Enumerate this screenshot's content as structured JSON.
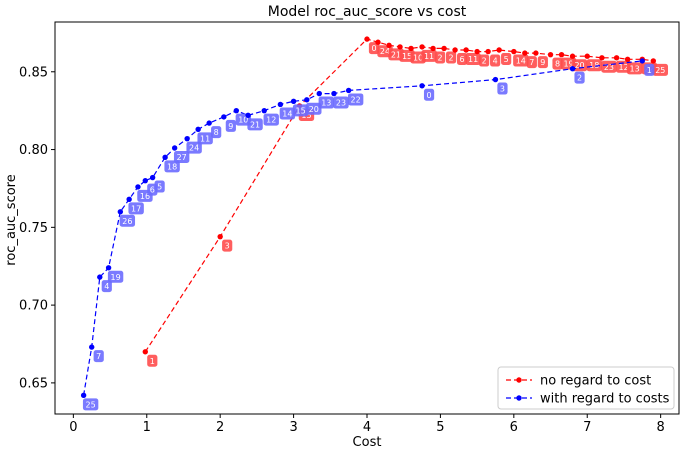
{
  "chart_data": {
    "type": "line",
    "title": "Model roc_auc_score vs cost",
    "xlabel": "Cost",
    "ylabel": "roc_auc_score",
    "xlim": [
      -0.25,
      8.25
    ],
    "ylim": [
      0.63,
      0.882
    ],
    "xticks": [
      "0",
      "1",
      "2",
      "3",
      "4",
      "5",
      "6",
      "7",
      "8"
    ],
    "yticks": [
      "0.65",
      "0.70",
      "0.75",
      "0.80",
      "0.85"
    ],
    "grid": false,
    "legend_position": "lower-right",
    "series": [
      {
        "name": "no regard to cost",
        "color": "#ff0000",
        "label_bg": "#ff4d4d",
        "linestyle": "dashed",
        "points": [
          {
            "x": 0.98,
            "y": 0.67,
            "label": "1"
          },
          {
            "x": 2.0,
            "y": 0.744,
            "label": "3"
          },
          {
            "x": 3.08,
            "y": 0.828,
            "label": "15"
          },
          {
            "x": 4.0,
            "y": 0.871,
            "label": "0"
          },
          {
            "x": 4.15,
            "y": 0.869,
            "label": "24"
          },
          {
            "x": 4.3,
            "y": 0.867,
            "label": "21"
          },
          {
            "x": 4.45,
            "y": 0.866,
            "label": "15"
          },
          {
            "x": 4.6,
            "y": 0.865,
            "label": "10"
          },
          {
            "x": 4.75,
            "y": 0.866,
            "label": "11"
          },
          {
            "x": 4.9,
            "y": 0.865,
            "label": "2"
          },
          {
            "x": 5.05,
            "y": 0.865,
            "label": "2"
          },
          {
            "x": 5.2,
            "y": 0.864,
            "label": "6"
          },
          {
            "x": 5.35,
            "y": 0.864,
            "label": "11"
          },
          {
            "x": 5.5,
            "y": 0.863,
            "label": "2"
          },
          {
            "x": 5.65,
            "y": 0.863,
            "label": "4"
          },
          {
            "x": 5.8,
            "y": 0.864,
            "label": "5"
          },
          {
            "x": 6.0,
            "y": 0.863,
            "label": "14"
          },
          {
            "x": 6.15,
            "y": 0.862,
            "label": "7"
          },
          {
            "x": 6.3,
            "y": 0.862,
            "label": "9"
          },
          {
            "x": 6.5,
            "y": 0.861,
            "label": "8"
          },
          {
            "x": 6.65,
            "y": 0.861,
            "label": "19"
          },
          {
            "x": 6.8,
            "y": 0.86,
            "label": "20"
          },
          {
            "x": 7.0,
            "y": 0.86,
            "label": "18"
          },
          {
            "x": 7.2,
            "y": 0.859,
            "label": "23"
          },
          {
            "x": 7.4,
            "y": 0.859,
            "label": "12"
          },
          {
            "x": 7.55,
            "y": 0.858,
            "label": "13"
          },
          {
            "x": 7.75,
            "y": 0.858,
            "label": "22"
          },
          {
            "x": 7.9,
            "y": 0.857,
            "label": "25"
          }
        ]
      },
      {
        "name": "with regard to costs",
        "color": "#0000ff",
        "label_bg": "#6b6bff",
        "linestyle": "dashed",
        "points": [
          {
            "x": 0.14,
            "y": 0.642,
            "label": "25"
          },
          {
            "x": 0.25,
            "y": 0.673,
            "label": "7"
          },
          {
            "x": 0.36,
            "y": 0.718,
            "label": "4"
          },
          {
            "x": 0.48,
            "y": 0.724,
            "label": "19"
          },
          {
            "x": 0.64,
            "y": 0.76,
            "label": "26"
          },
          {
            "x": 0.76,
            "y": 0.768,
            "label": "17"
          },
          {
            "x": 0.88,
            "y": 0.776,
            "label": "16"
          },
          {
            "x": 0.98,
            "y": 0.78,
            "label": "6"
          },
          {
            "x": 1.08,
            "y": 0.782,
            "label": "5"
          },
          {
            "x": 1.25,
            "y": 0.795,
            "label": "18"
          },
          {
            "x": 1.38,
            "y": 0.801,
            "label": "27"
          },
          {
            "x": 1.55,
            "y": 0.807,
            "label": "24"
          },
          {
            "x": 1.7,
            "y": 0.813,
            "label": "11"
          },
          {
            "x": 1.85,
            "y": 0.817,
            "label": "8"
          },
          {
            "x": 2.05,
            "y": 0.821,
            "label": "9"
          },
          {
            "x": 2.22,
            "y": 0.825,
            "label": "10"
          },
          {
            "x": 2.38,
            "y": 0.822,
            "label": "21"
          },
          {
            "x": 2.6,
            "y": 0.825,
            "label": "12"
          },
          {
            "x": 2.82,
            "y": 0.829,
            "label": "14"
          },
          {
            "x": 3.0,
            "y": 0.831,
            "label": "15"
          },
          {
            "x": 3.18,
            "y": 0.832,
            "label": "20"
          },
          {
            "x": 3.35,
            "y": 0.836,
            "label": "13"
          },
          {
            "x": 3.55,
            "y": 0.836,
            "label": "23"
          },
          {
            "x": 3.75,
            "y": 0.838,
            "label": "22"
          },
          {
            "x": 4.75,
            "y": 0.841,
            "label": "0"
          },
          {
            "x": 5.75,
            "y": 0.845,
            "label": "3"
          },
          {
            "x": 6.8,
            "y": 0.852,
            "label": "2"
          },
          {
            "x": 7.75,
            "y": 0.857,
            "label": "1"
          }
        ]
      }
    ]
  }
}
